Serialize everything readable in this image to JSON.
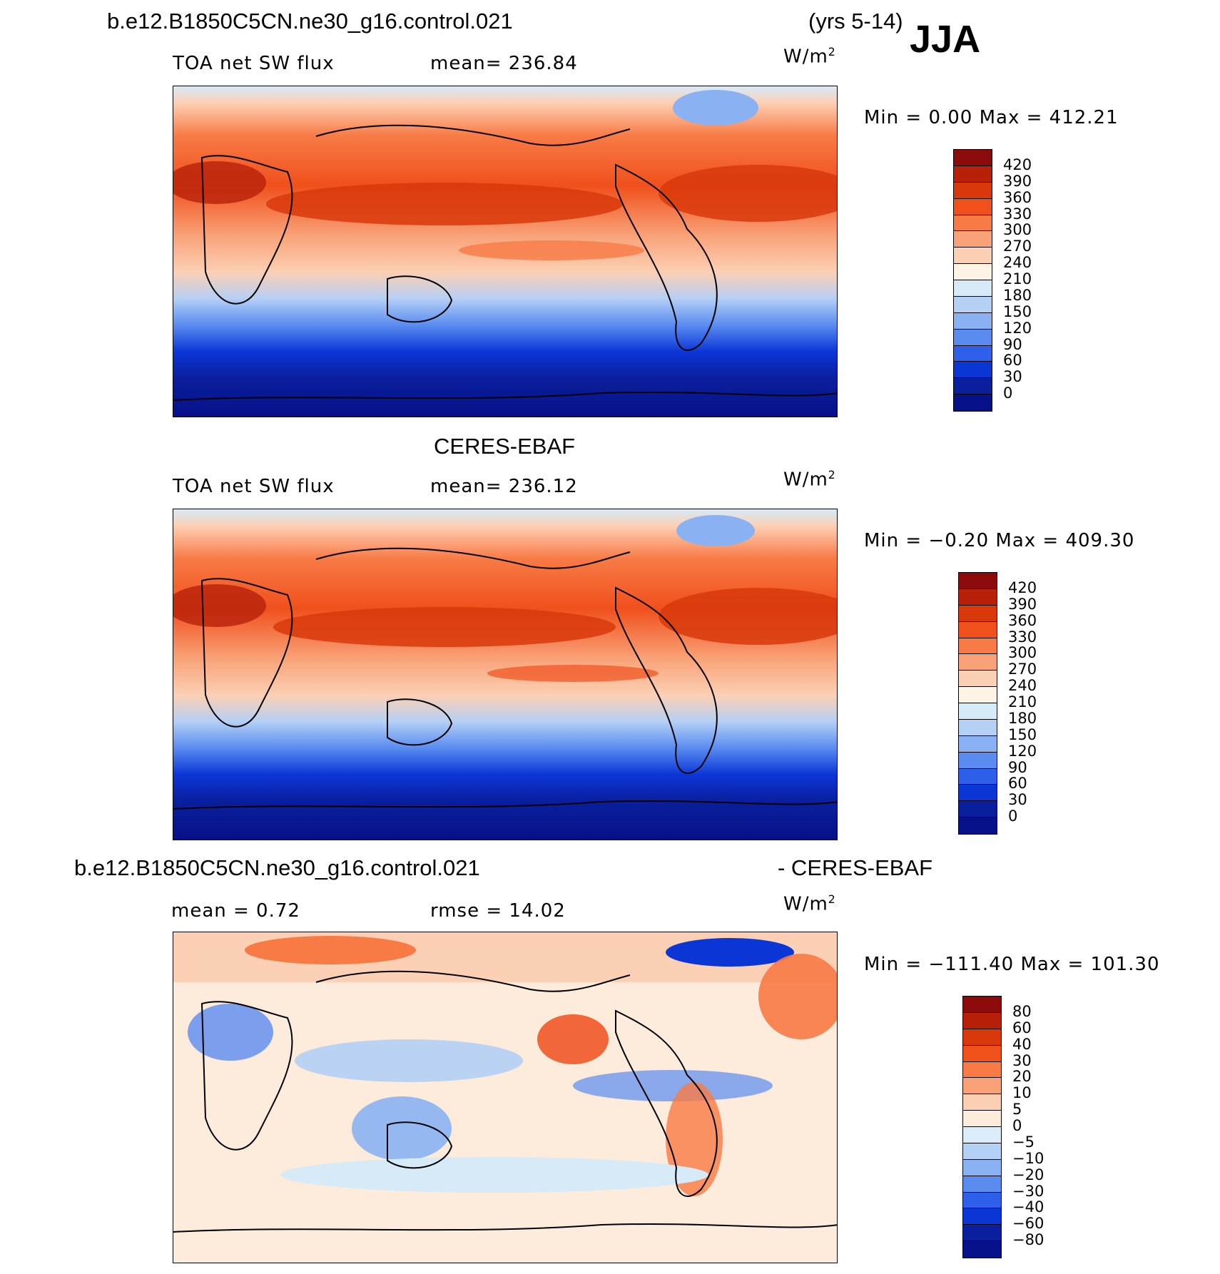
{
  "header": {
    "case_title": "b.e12.B1850C5CN.ne30_g16.control.021",
    "years": "(yrs 5-14)",
    "season": "JJA"
  },
  "panels": [
    {
      "id": "model",
      "variable": "TOA net SW flux",
      "stat1": "mean=  236.84",
      "units": "W/m",
      "units_sup": "2",
      "minmax": "Min =    0.00  Max  =  412.21",
      "colorbar_labels": [
        "420",
        "390",
        "360",
        "330",
        "300",
        "270",
        "240",
        "210",
        "180",
        "150",
        "120",
        "90",
        "60",
        "30",
        "0"
      ]
    },
    {
      "id": "obs",
      "title": "CERES-EBAF",
      "variable": "TOA net SW flux",
      "stat1": "mean=  236.12",
      "units": "W/m",
      "units_sup": "2",
      "minmax": "Min =   −0.20  Max  =  409.30",
      "colorbar_labels": [
        "420",
        "390",
        "360",
        "330",
        "300",
        "270",
        "240",
        "210",
        "180",
        "150",
        "120",
        "90",
        "60",
        "30",
        "0"
      ]
    },
    {
      "id": "diff",
      "title_left": "b.e12.B1850C5CN.ne30_g16.control.021",
      "title_right": "- CERES-EBAF",
      "stat1": "mean =    0.72",
      "stat2": "rmse  =   14.02",
      "units": "W/m",
      "units_sup": "2",
      "minmax": "Min = −111.40  Max  =  101.30",
      "colorbar_labels": [
        "80",
        "60",
        "40",
        "30",
        "20",
        "10",
        "5",
        "0",
        "−5",
        "−10",
        "−20",
        "−30",
        "−40",
        "−60",
        "−80"
      ]
    }
  ],
  "colors": {
    "flux_scale": [
      "#8b0a0a",
      "#b8200a",
      "#d8380a",
      "#f0501c",
      "#f87a45",
      "#f9a278",
      "#fcd0b4",
      "#fff4e6",
      "#d6eaf8",
      "#b4d0f5",
      "#8ab2f2",
      "#5a8cf0",
      "#2f60ec",
      "#0b36d6",
      "#0a1f9e",
      "#061088"
    ],
    "diff_scale": [
      "#8b0a0a",
      "#b8200a",
      "#d8380a",
      "#f0501c",
      "#f87a45",
      "#f9a278",
      "#fcd0b4",
      "#fdebdc",
      "#dcecf8",
      "#b4d0f5",
      "#8ab2f2",
      "#5a8cf0",
      "#2f60ec",
      "#0b36d6",
      "#0a1f9e",
      "#061088"
    ]
  }
}
